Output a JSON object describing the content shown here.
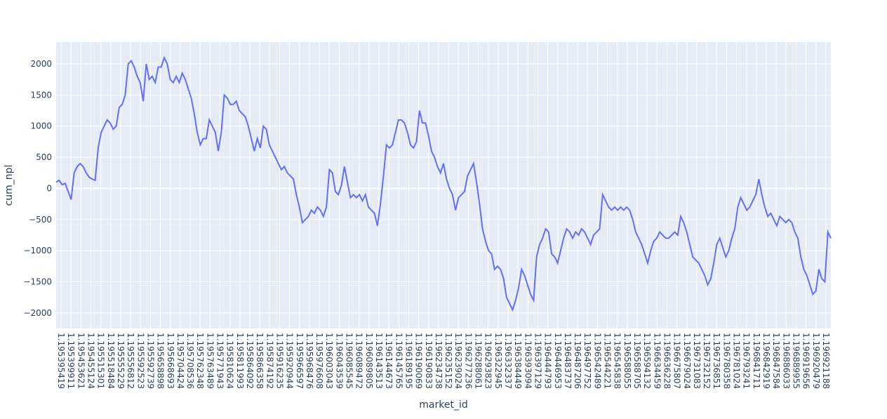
{
  "chart_data": {
    "type": "line",
    "title": "",
    "xlabel": "market_id",
    "ylabel": "cum_npl",
    "ylim": [
      -2250,
      2350
    ],
    "y_ticks": [
      -2000,
      -1500,
      -1000,
      -500,
      0,
      500,
      1000,
      1500,
      2000
    ],
    "grid": true,
    "legend": "none",
    "x_tick_labels": [
      "1.195395419",
      "1.195399911",
      "1.195453621",
      "1.195455124",
      "1.195515301",
      "1.195518484",
      "1.195555229",
      "1.195556812",
      "1.195592523",
      "1.195592739",
      "1.195658898",
      "1.195668693",
      "1.195704424",
      "1.195708536",
      "1.195762348",
      "1.195763489",
      "1.195771943",
      "1.195810624",
      "1.195811993",
      "1.195864092",
      "1.195866358",
      "1.195874192",
      "1.195916235",
      "1.195920944",
      "1.195966597",
      "1.195968476",
      "1.195976608",
      "1.196003043",
      "1.196043539",
      "1.196085545",
      "1.196089472",
      "1.196089805",
      "1.196143513",
      "1.196144673",
      "1.196145765",
      "1.196189195",
      "1.196190069",
      "1.196190833",
      "1.196234738",
      "1.196235152",
      "1.196239024",
      "1.196277236",
      "1.196288061",
      "1.196293823",
      "1.196322945",
      "1.196332337",
      "1.196384449",
      "1.196393094",
      "1.196397129",
      "1.196444793",
      "1.196446953",
      "1.196483737",
      "1.196487206",
      "1.196497752",
      "1.196542489",
      "1.196544221",
      "1.196545838",
      "1.196588055",
      "1.196588705",
      "1.196594132",
      "1.196634459",
      "1.196636228",
      "1.196675807",
      "1.196679024",
      "1.196731083",
      "1.196732152",
      "1.196736851",
      "1.196780358",
      "1.196781024",
      "1.196793241",
      "1.196841711",
      "1.196842919",
      "1.196847584",
      "1.196886033",
      "1.196889955",
      "1.196919656",
      "1.196920479",
      "1.196921188"
    ],
    "series": [
      {
        "values": [
          100,
          130,
          60,
          80,
          -50,
          -180,
          250,
          350,
          400,
          350,
          250,
          180,
          150,
          130,
          650,
          900,
          1000,
          1100,
          1050,
          950,
          1000,
          1300,
          1350,
          1500,
          2000,
          2050,
          1950,
          1800,
          1700,
          1400,
          2000,
          1750,
          1800,
          1700,
          1950,
          1950,
          2100,
          2000,
          1750,
          1700,
          1800,
          1700,
          1850,
          1750,
          1600,
          1450,
          1200,
          900,
          700,
          800,
          800,
          1100,
          1000,
          900,
          600,
          900,
          1500,
          1450,
          1350,
          1350,
          1400,
          1250,
          1200,
          1150,
          1000,
          800,
          600,
          800,
          650,
          1000,
          950,
          700,
          600,
          500,
          400,
          300,
          350,
          250,
          200,
          150,
          -100,
          -300,
          -550,
          -500,
          -450,
          -350,
          -400,
          -300,
          -350,
          -450,
          -300,
          300,
          250,
          -50,
          -100,
          50,
          350,
          100,
          -150,
          -100,
          -150,
          -100,
          -200,
          -100,
          -300,
          -350,
          -400,
          -600,
          -250,
          200,
          700,
          650,
          700,
          900,
          1100,
          1100,
          1050,
          900,
          700,
          650,
          750,
          1250,
          1050,
          1050,
          850,
          600,
          500,
          350,
          250,
          400,
          150,
          0,
          -100,
          -350,
          -150,
          -100,
          -50,
          200,
          300,
          400,
          100,
          -250,
          -650,
          -850,
          -1000,
          -1050,
          -1300,
          -1250,
          -1300,
          -1450,
          -1750,
          -1850,
          -1950,
          -1800,
          -1600,
          -1300,
          -1400,
          -1550,
          -1700,
          -1800,
          -1100,
          -900,
          -800,
          -650,
          -700,
          -1050,
          -1100,
          -1200,
          -1000,
          -800,
          -650,
          -700,
          -800,
          -700,
          -750,
          -650,
          -700,
          -800,
          -900,
          -750,
          -700,
          -650,
          -100,
          -200,
          -300,
          -350,
          -300,
          -350,
          -300,
          -350,
          -300,
          -350,
          -500,
          -700,
          -800,
          -900,
          -1050,
          -1200,
          -1000,
          -850,
          -800,
          -700,
          -750,
          -800,
          -800,
          -750,
          -700,
          -750,
          -450,
          -550,
          -700,
          -900,
          -1100,
          -1150,
          -1200,
          -1300,
          -1400,
          -1550,
          -1450,
          -1200,
          -900,
          -800,
          -950,
          -1100,
          -1000,
          -800,
          -650,
          -300,
          -150,
          -250,
          -350,
          -300,
          -200,
          -100,
          150,
          -100,
          -300,
          -450,
          -400,
          -500,
          -600,
          -450,
          -500,
          -550,
          -500,
          -550,
          -700,
          -800,
          -1100,
          -1300,
          -1400,
          -1550,
          -1700,
          -1650,
          -1300,
          -1450,
          -1500,
          -700,
          -800
        ]
      }
    ],
    "line_color": "#636efa"
  }
}
